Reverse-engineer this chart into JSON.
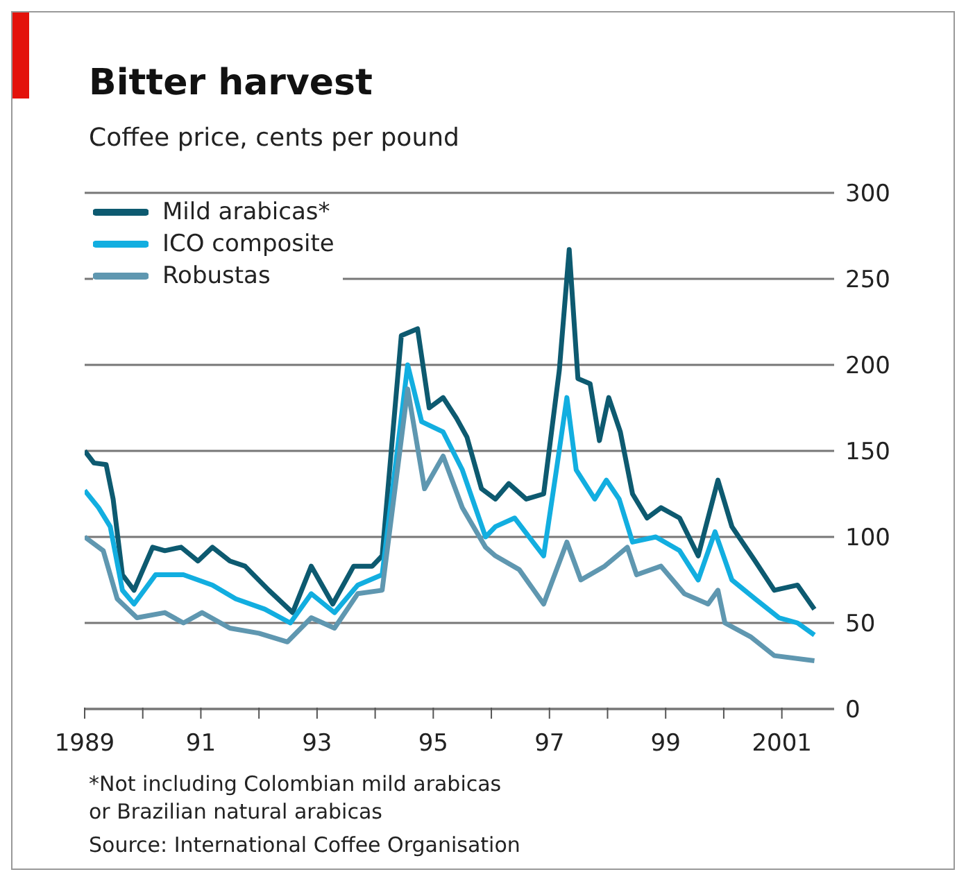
{
  "chart_data": {
    "type": "line",
    "title": "Bitter harvest",
    "subtitle": "Coffee price, cents per pound",
    "annotations": [
      "*Not including Colombian mild arabicas or Brazilian natural arabicas",
      "Source: International Coffee Organisation"
    ],
    "series": [
      {
        "name": "Mild arabicas*",
        "color": "#0d5a70",
        "x": [
          1989,
          1989.16,
          1989.37,
          1989.49,
          1989.65,
          1989.85,
          1990.17,
          1990.38,
          1990.66,
          1990.95,
          1991.2,
          1991.5,
          1991.76,
          1992.17,
          1992.58,
          1992.9,
          1993.27,
          1993.63,
          1993.95,
          1994.12,
          1994.45,
          1994.73,
          1994.93,
          1995.17,
          1995.4,
          1995.58,
          1995.83,
          1996.07,
          1996.3,
          1996.6,
          1996.9,
          1997.17,
          1997.34,
          1997.49,
          1997.7,
          1997.86,
          1998.02,
          1998.22,
          1998.43,
          1998.68,
          1998.92,
          1999.24,
          1999.56,
          1999.9,
          2000.14,
          2000.54,
          2000.87,
          2001.27,
          2001.56
        ],
        "values": [
          150,
          143,
          142,
          122,
          78,
          69,
          94,
          92,
          94,
          86,
          94,
          86,
          83,
          69,
          56,
          83,
          61,
          83,
          83,
          89,
          217,
          221,
          175,
          181,
          169,
          158,
          128,
          122,
          131,
          122,
          125,
          197,
          267,
          192,
          189,
          156,
          181,
          161,
          125,
          111,
          117,
          111,
          89,
          133,
          106,
          86,
          69,
          72,
          58
        ]
      },
      {
        "name": "ICO composite",
        "color": "#12aee0",
        "x": [
          1989,
          1989.24,
          1989.44,
          1989.65,
          1989.85,
          1990.22,
          1990.7,
          1991.2,
          1991.6,
          1992.1,
          1992.54,
          1992.9,
          1993.3,
          1993.7,
          1994.12,
          1994.56,
          1994.8,
          1995.17,
          1995.5,
          1995.9,
          1996.07,
          1996.4,
          1996.9,
          1997.12,
          1997.3,
          1997.46,
          1997.78,
          1997.98,
          1998.2,
          1998.43,
          1998.83,
          1999.24,
          1999.56,
          1999.85,
          2000.14,
          2000.54,
          2000.95,
          2001.27,
          2001.56
        ],
        "values": [
          127,
          117,
          106,
          69,
          61,
          78,
          78,
          72,
          64,
          58,
          50,
          67,
          56,
          72,
          78,
          200,
          167,
          161,
          139,
          100,
          106,
          111,
          89,
          139,
          181,
          139,
          122,
          133,
          122,
          97,
          100,
          92,
          75,
          103,
          75,
          64,
          53,
          50,
          43
        ]
      },
      {
        "name": "Robustas",
        "color": "#5f97b0",
        "x": [
          1989,
          1989.32,
          1989.56,
          1989.9,
          1990.38,
          1990.7,
          1991.02,
          1991.5,
          1992,
          1992.49,
          1992.9,
          1993.3,
          1993.7,
          1994.12,
          1994.56,
          1994.85,
          1995.17,
          1995.5,
          1995.9,
          1996.07,
          1996.48,
          1996.9,
          1997.3,
          1997.54,
          1997.95,
          1998.34,
          1998.5,
          1998.92,
          1999.32,
          1999.73,
          1999.9,
          2000.02,
          2000.46,
          2000.87,
          2001.56
        ],
        "values": [
          100,
          92,
          64,
          53,
          56,
          50,
          56,
          47,
          44,
          39,
          53,
          47,
          67,
          69,
          186,
          128,
          147,
          117,
          94,
          89,
          81,
          61,
          97,
          75,
          83,
          94,
          78,
          83,
          67,
          61,
          69,
          50,
          42,
          31,
          28
        ]
      }
    ],
    "xlim": [
      1989,
      2001.9
    ],
    "xticks": [
      {
        "value": 1989,
        "label": "1989"
      },
      {
        "value": 1990,
        "label": null
      },
      {
        "value": 1991,
        "label": "91"
      },
      {
        "value": 1992,
        "label": null
      },
      {
        "value": 1993,
        "label": "93"
      },
      {
        "value": 1994,
        "label": null
      },
      {
        "value": 1995,
        "label": "95"
      },
      {
        "value": 1996,
        "label": null
      },
      {
        "value": 1997,
        "label": "97"
      },
      {
        "value": 1998,
        "label": null
      },
      {
        "value": 1999,
        "label": "99"
      },
      {
        "value": 2000,
        "label": null
      },
      {
        "value": 2001,
        "label": "2001"
      }
    ],
    "ylim": [
      0,
      300
    ],
    "yticks": [
      0,
      50,
      100,
      150,
      200,
      250,
      300
    ],
    "grid": "y",
    "legend": "top left",
    "line_style": "solid",
    "marker": "none"
  }
}
